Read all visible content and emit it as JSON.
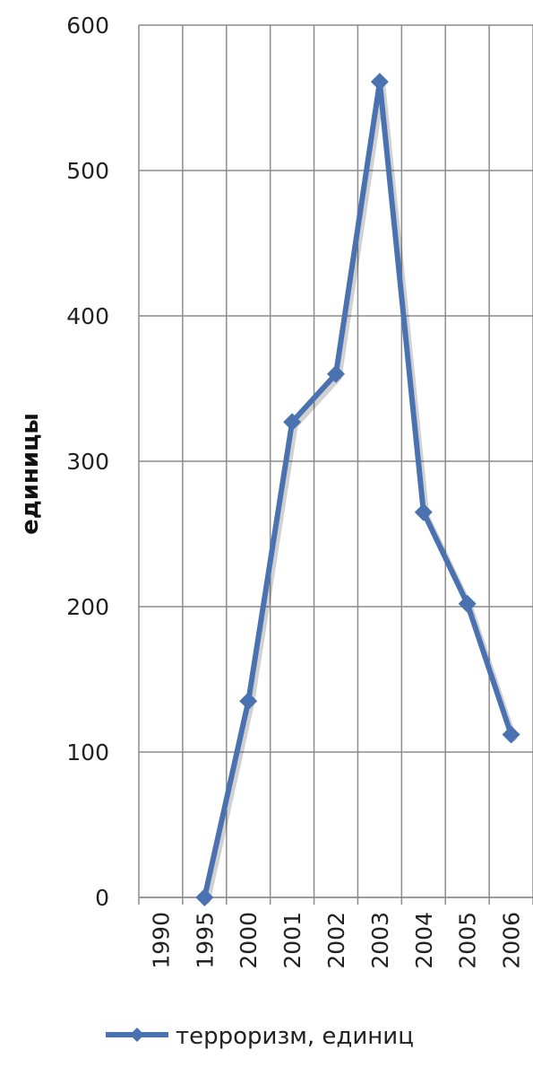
{
  "chart_data": {
    "type": "line",
    "title": "",
    "xlabel": "",
    "ylabel": "единицы",
    "categories": [
      "1990",
      "1995",
      "2000",
      "2001",
      "2002",
      "2003",
      "2004",
      "2005",
      "2006"
    ],
    "series": [
      {
        "name": "терроризм, единиц",
        "values": [
          null,
          0,
          135,
          327,
          360,
          561,
          265,
          202,
          112
        ],
        "color": "#4a72b0",
        "marker": "diamond"
      }
    ],
    "ylim": [
      0,
      600
    ],
    "yticks": [
      0,
      100,
      200,
      300,
      400,
      500,
      600
    ],
    "grid": true,
    "legend": "bottom"
  }
}
